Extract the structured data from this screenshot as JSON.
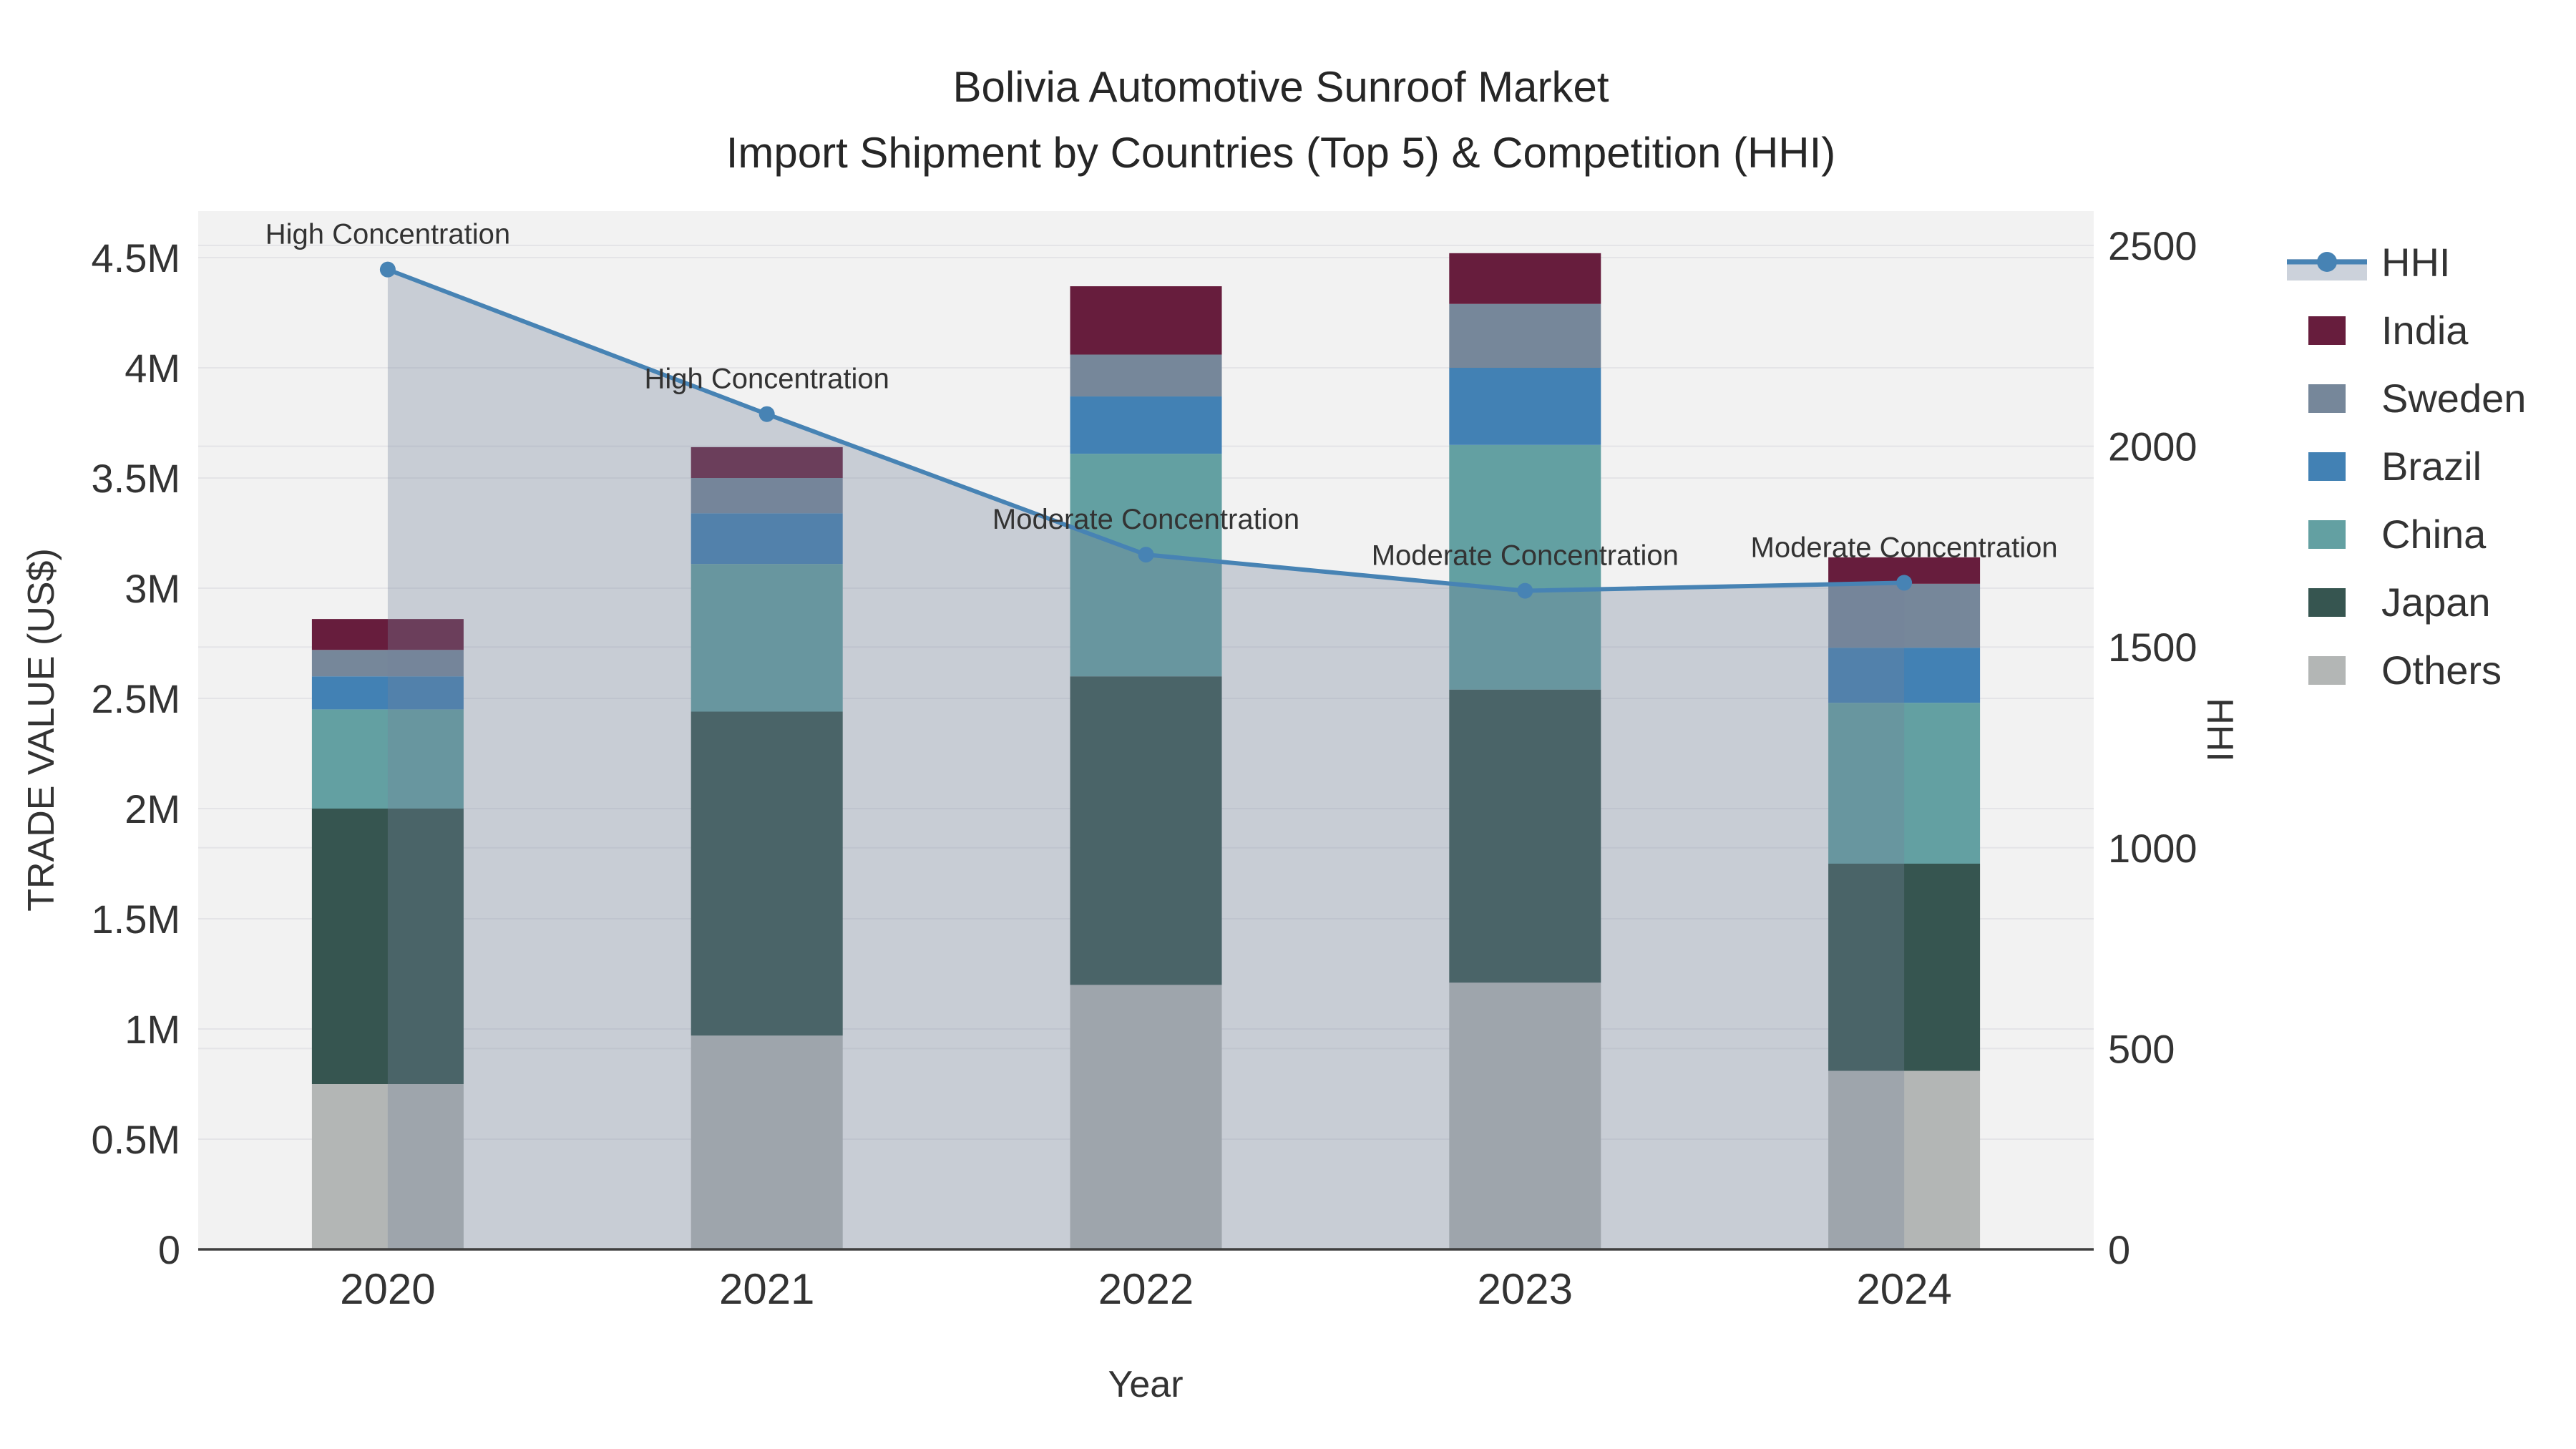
{
  "title": {
    "line1": "Bolivia Automotive Sunroof Market",
    "line2": "Import Shipment by Countries (Top 5) & Competition (HHI)"
  },
  "chart_data": {
    "type": "bar",
    "subtype": "stacked-bars-with-dual-axis-line",
    "categories": [
      "2020",
      "2021",
      "2022",
      "2023",
      "2024"
    ],
    "series": [
      {
        "name": "Others",
        "color": "#b3b6b5",
        "values": [
          0.75,
          0.97,
          1.2,
          1.21,
          0.81
        ]
      },
      {
        "name": "Japan",
        "color": "#365550",
        "values": [
          1.25,
          1.47,
          1.4,
          1.33,
          0.94
        ]
      },
      {
        "name": "China",
        "color": "#63a0a2",
        "values": [
          0.45,
          0.67,
          1.01,
          1.11,
          0.73
        ]
      },
      {
        "name": "Brazil",
        "color": "#4281b4",
        "values": [
          0.15,
          0.23,
          0.26,
          0.35,
          0.25
        ]
      },
      {
        "name": "Sweden",
        "color": "#76879a",
        "values": [
          0.12,
          0.16,
          0.19,
          0.29,
          0.29
        ]
      },
      {
        "name": "India",
        "color": "#671d3d",
        "values": [
          0.14,
          0.14,
          0.31,
          0.23,
          0.12
        ]
      }
    ],
    "hhi": {
      "name": "HHI",
      "line_color": "#4783b4",
      "area_fill": "rgba(115,130,155,0.33)",
      "values": [
        2440,
        2080,
        1730,
        1640,
        1660
      ],
      "annotations": [
        "High Concentration",
        "High Concentration",
        "Moderate Concentration",
        "Moderate Concentration",
        "Moderate Concentration"
      ]
    },
    "left_axis": {
      "label": "TRADE VALUE (US$)",
      "tick_values": [
        0,
        0.5,
        1,
        1.5,
        2,
        2.5,
        3,
        3.5,
        4,
        4.5
      ],
      "tick_labels": [
        "0",
        "0.5M",
        "1M",
        "1.5M",
        "2M",
        "2.5M",
        "3M",
        "3.5M",
        "4M",
        "4.5M"
      ]
    },
    "right_axis": {
      "label": "HHI",
      "tick_values": [
        0,
        500,
        1000,
        1500,
        2000,
        2500
      ],
      "tick_labels": [
        "0",
        "500",
        "1000",
        "1500",
        "2000",
        "2500"
      ]
    },
    "x_axis": {
      "label": "Year"
    },
    "legend": [
      {
        "label": "HHI",
        "type": "line",
        "color": "#4783b4",
        "band_color": "#ccd2db"
      },
      {
        "label": "India",
        "type": "swatch",
        "color": "#671d3d"
      },
      {
        "label": "Sweden",
        "type": "swatch",
        "color": "#76879a"
      },
      {
        "label": "Brazil",
        "type": "swatch",
        "color": "#4281b4"
      },
      {
        "label": "China",
        "type": "swatch",
        "color": "#63a0a2"
      },
      {
        "label": "Japan",
        "type": "swatch",
        "color": "#365550"
      },
      {
        "label": "Others",
        "type": "swatch",
        "color": "#b3b6b5"
      }
    ],
    "layout_hints": {
      "plot_bg": "#f2f2f2",
      "grid_color": "#e4e4e7",
      "baseline_color": "#3f3f3f",
      "grid": "on",
      "legend_position": "top-right",
      "left_ylim": [
        0,
        4.71
      ],
      "right_ylim": [
        0,
        2585
      ]
    }
  }
}
